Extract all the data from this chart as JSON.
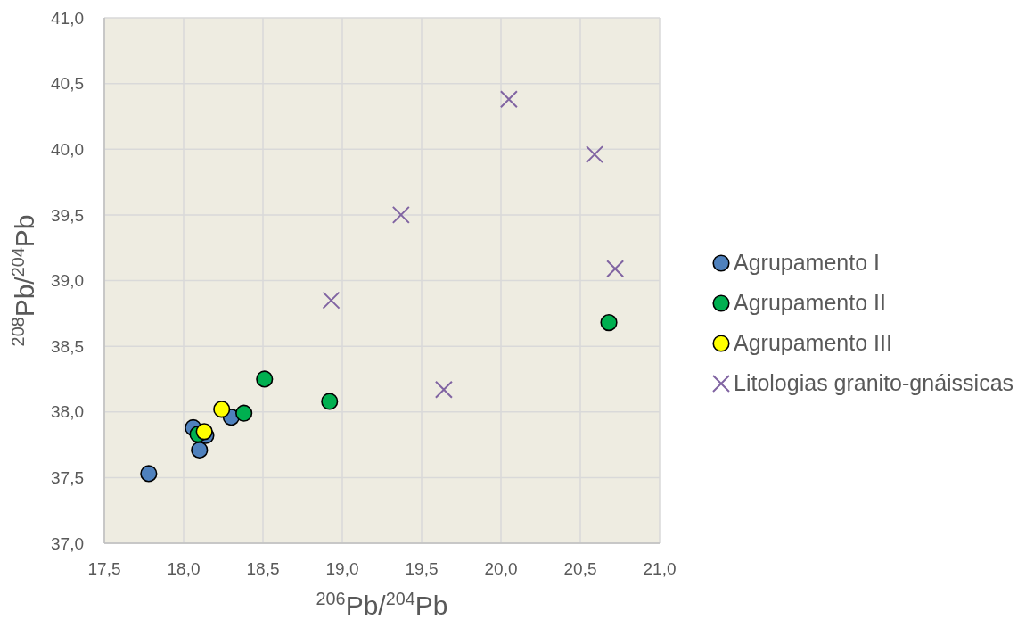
{
  "chart_data": {
    "type": "scatter",
    "xlabel": "$^{206}$Pb/$^{204}$Pb",
    "ylabel": "$^{208}$Pb/$^{204}$Pb",
    "xlim": [
      17.5,
      21
    ],
    "xticks": [
      {
        "value": 17.5,
        "label": "17,5"
      },
      {
        "value": 18,
        "label": "18,0"
      },
      {
        "value": 18.5,
        "label": "18,5"
      },
      {
        "value": 19,
        "label": "19,0"
      },
      {
        "value": 19.5,
        "label": "19,5"
      },
      {
        "value": 20,
        "label": "20,0"
      },
      {
        "value": 20.5,
        "label": "20,5"
      },
      {
        "value": 21,
        "label": "21,0"
      }
    ],
    "ylim": [
      37,
      41
    ],
    "yticks": [
      {
        "value": 37,
        "label": "37,0"
      },
      {
        "value": 37.5,
        "label": "37,5"
      },
      {
        "value": 38,
        "label": "38,0"
      },
      {
        "value": 38.5,
        "label": "38,5"
      },
      {
        "value": 39,
        "label": "39,0"
      },
      {
        "value": 39.5,
        "label": "39,5"
      },
      {
        "value": 40,
        "label": "40,0"
      },
      {
        "value": 40.5,
        "label": "40,5"
      },
      {
        "value": 41,
        "label": "41,0"
      }
    ],
    "grid": true,
    "legend": "right",
    "series": [
      {
        "name": "Agrupamento I",
        "color": "#4f81bd",
        "marker": "circle",
        "x": [
          17.78,
          18.06,
          18.1,
          18.3,
          18.14
        ],
        "values": [
          37.53,
          37.88,
          37.71,
          37.96,
          37.82
        ]
      },
      {
        "name": "Agrupamento II",
        "color": "#00b050",
        "marker": "circle",
        "x": [
          18.09,
          18.38,
          18.51,
          18.92,
          20.68
        ],
        "values": [
          37.83,
          37.99,
          38.25,
          38.08,
          38.68
        ]
      },
      {
        "name": "Agrupamento III",
        "color": "#ffff00",
        "marker": "circle",
        "x": [
          18.13,
          18.24
        ],
        "values": [
          37.85,
          38.02
        ]
      },
      {
        "name": "Litologias granito-gnáissicas",
        "color": "#8064a2",
        "marker": "cross",
        "x": [
          18.93,
          19.37,
          19.64,
          20.05,
          20.59,
          20.72
        ],
        "values": [
          38.85,
          39.5,
          38.17,
          40.38,
          39.96,
          39.09
        ]
      }
    ]
  }
}
